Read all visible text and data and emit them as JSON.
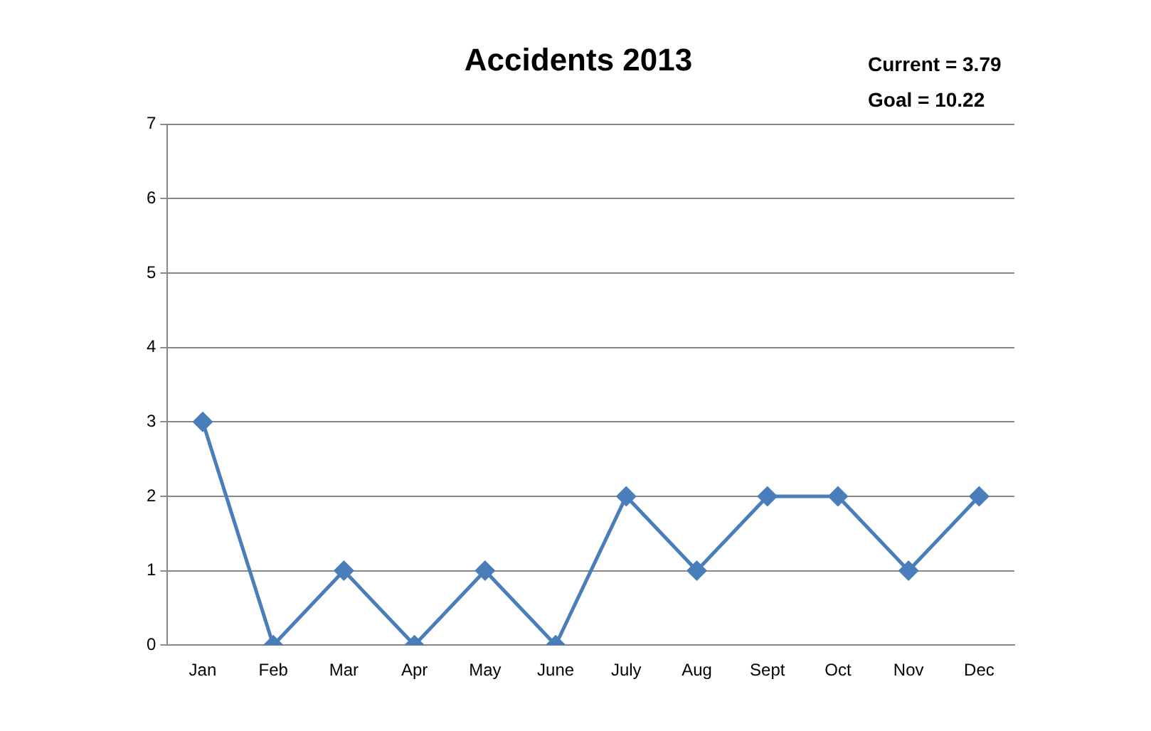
{
  "chart_data": {
    "type": "line",
    "title": "Accidents 2013",
    "annotations": [
      "Current = 3.79",
      "Goal = 10.22"
    ],
    "categories": [
      "Jan",
      "Feb",
      "Mar",
      "Apr",
      "May",
      "June",
      "July",
      "Aug",
      "Sept",
      "Oct",
      "Nov",
      "Dec"
    ],
    "series": [
      {
        "color": "#4a7ebb",
        "values": [
          3,
          0,
          1,
          0,
          1,
          0,
          2,
          1,
          2,
          2,
          1,
          2
        ]
      }
    ],
    "ylim": [
      0,
      7
    ],
    "yticks": [
      0,
      1,
      2,
      3,
      4,
      5,
      6,
      7
    ],
    "grid": "y",
    "legend": false,
    "marker": "diamond",
    "line_style": "solid"
  }
}
